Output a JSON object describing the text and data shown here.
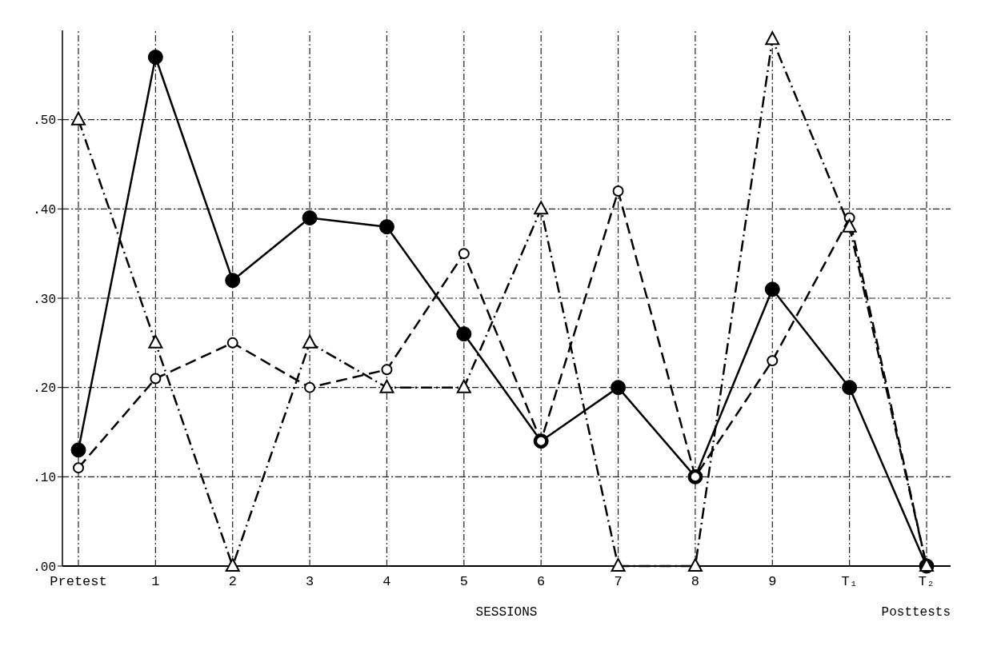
{
  "chart_data": {
    "type": "line",
    "xlabel": "SESSIONS",
    "annotations": [
      "Posttests"
    ],
    "categories": [
      "Pretest",
      "1",
      "2",
      "3",
      "4",
      "5",
      "6",
      "7",
      "8",
      "9",
      "T₁",
      "T₂"
    ],
    "series": [
      {
        "color": "#000000",
        "marker": "circle",
        "line_style": "solid",
        "values": [
          0.13,
          0.57,
          0.32,
          0.39,
          0.38,
          0.26,
          0.14,
          0.2,
          0.1,
          0.31,
          0.2,
          0
        ]
      },
      {
        "color": "#000000",
        "marker": "circle-open",
        "line_style": "dashed",
        "values": [
          0.11,
          0.21,
          0.25,
          0.2,
          0.22,
          0.35,
          0.14,
          0.42,
          0.1,
          0.23,
          0.39,
          0
        ]
      },
      {
        "color": "#000000",
        "marker": "triangle",
        "line_style": "dashdot",
        "values": [
          0.5,
          0.25,
          0,
          0.25,
          0.2,
          0.2,
          0.4,
          0,
          0,
          0.59,
          0.38,
          0
        ]
      }
    ],
    "ylim": [
      0,
      0.6
    ],
    "yticks": [
      {
        "value": 0,
        "label": ".00"
      },
      {
        "value": 0.1,
        "label": ".10"
      },
      {
        "value": 0.2,
        "label": ".20"
      },
      {
        "value": 0.3,
        "label": ".30"
      },
      {
        "value": 0.4,
        "label": ".40"
      },
      {
        "value": 0.5,
        "label": ".50"
      }
    ],
    "grid": true
  }
}
